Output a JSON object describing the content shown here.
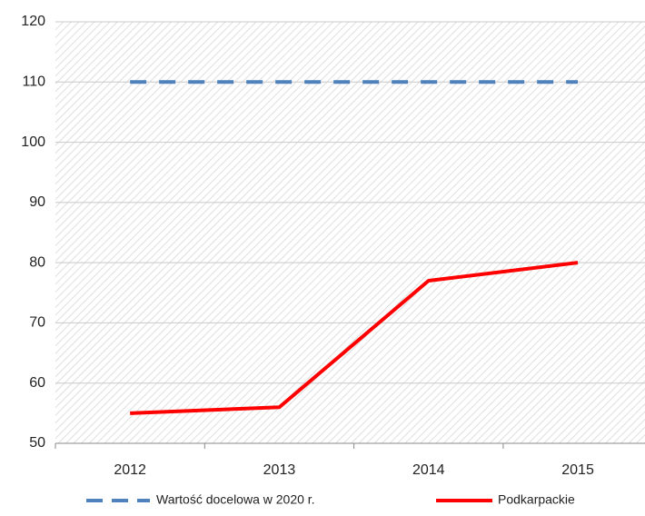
{
  "chart_data": {
    "type": "line",
    "categories": [
      "2012",
      "2013",
      "2014",
      "2015"
    ],
    "series": [
      {
        "name": "Wartość docelowa w 2020 r.",
        "color": "#4f81bd",
        "dashed": true,
        "values": [
          110,
          110,
          110,
          110
        ]
      },
      {
        "name": "Podkarpackie",
        "color": "#ff0000",
        "dashed": false,
        "values": [
          55,
          56,
          77,
          80
        ]
      }
    ],
    "ylim": [
      50,
      120
    ],
    "yticks": [
      50,
      60,
      70,
      80,
      90,
      100,
      110,
      120
    ],
    "grid": true,
    "legend": "bottom"
  }
}
